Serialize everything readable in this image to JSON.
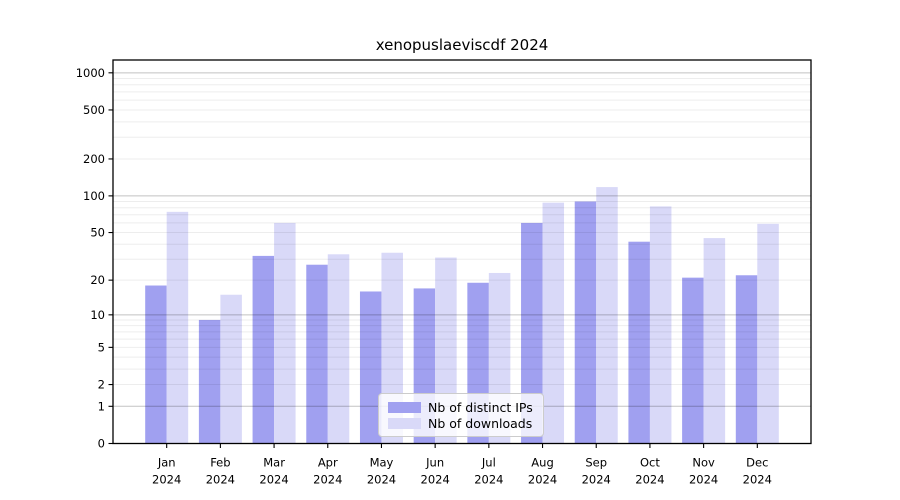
{
  "chart_data": {
    "type": "bar",
    "title": "xenopuslaeviscdf 2024",
    "categories": [
      "Jan",
      "Feb",
      "Mar",
      "Apr",
      "May",
      "Jun",
      "Jul",
      "Aug",
      "Sep",
      "Oct",
      "Nov",
      "Dec"
    ],
    "year_label": "2024",
    "series": [
      {
        "name": "Nb of distinct IPs",
        "color": "#a0a0f0",
        "values": [
          18,
          9,
          32,
          27,
          16,
          17,
          19,
          60,
          90,
          42,
          21,
          22
        ]
      },
      {
        "name": "Nb of downloads",
        "color": "#d9d9f8",
        "values": [
          74,
          15,
          60,
          33,
          34,
          31,
          23,
          88,
          118,
          82,
          45,
          59
        ]
      }
    ],
    "xlabel": "",
    "ylabel": "",
    "y_axis": {
      "scale": "log1p",
      "ticks": [
        0,
        1,
        2,
        5,
        10,
        20,
        50,
        100,
        200,
        500,
        1000
      ],
      "tick_labels": [
        "0",
        "1",
        "2",
        "5",
        "10",
        "20",
        "50",
        "100",
        "200",
        "500",
        "1000"
      ],
      "ylim": [
        0,
        1270
      ]
    },
    "grid": true,
    "legend_position": "lower center"
  }
}
